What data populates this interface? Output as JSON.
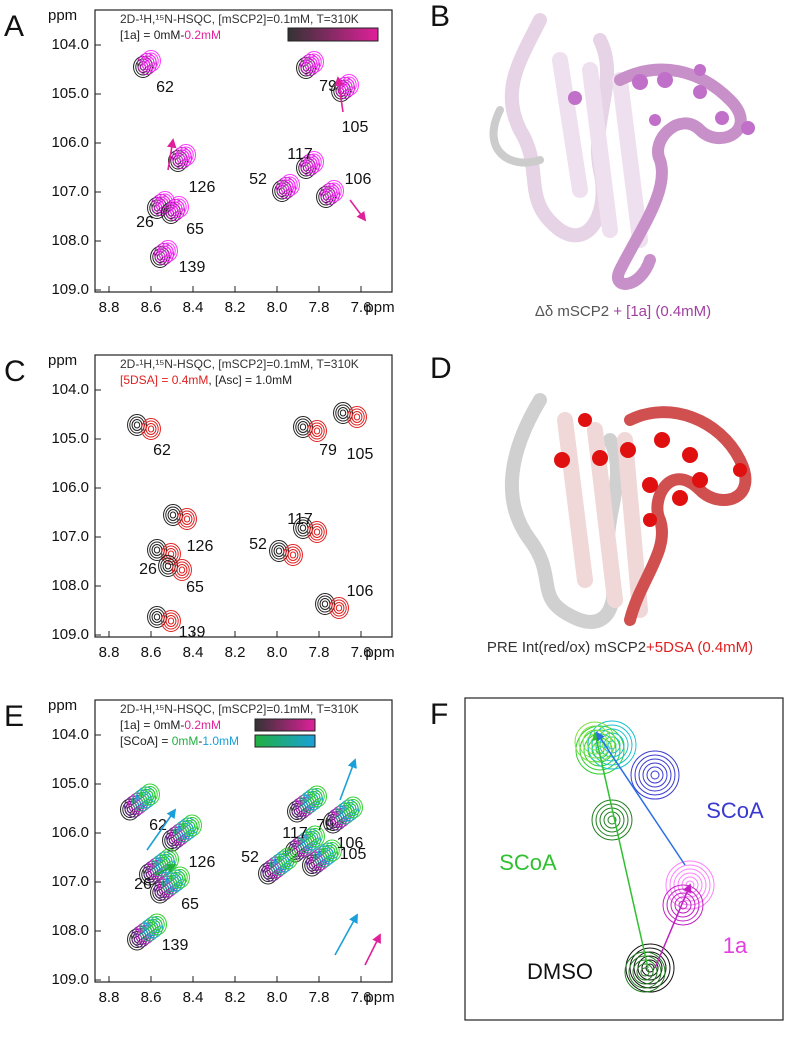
{
  "panels": [
    {
      "letter": "A",
      "unit": "ppm",
      "yticks": [
        "104.0",
        "105.0",
        "106.0",
        "107.0",
        "108.0",
        "109.0"
      ],
      "xticks": [
        "8.8",
        "8.6",
        "8.4",
        "8.2",
        "8.0",
        "7.8",
        "7.6"
      ],
      "legend": [
        [
          {
            "text": "2D-¹H,¹⁵N-HSQC, [mSCP2]=0.1mM, T=310K",
            "color": "#333333"
          }
        ],
        [
          {
            "text": "[1a] = 0mM-",
            "color": "#222222"
          },
          {
            "text": "0.2mM",
            "color": "#e0209a"
          }
        ]
      ],
      "peaks": [
        "62",
        "79",
        "105",
        "117",
        "52",
        "106",
        "126",
        "26",
        "65",
        "139"
      ]
    },
    {
      "letter": "C",
      "unit": "ppm",
      "yticks": [
        "104.0",
        "105.0",
        "106.0",
        "107.0",
        "108.0",
        "109.0"
      ],
      "xticks": [
        "8.8",
        "8.6",
        "8.4",
        "8.2",
        "8.0",
        "7.8",
        "7.6"
      ],
      "legend": [
        [
          {
            "text": "2D-¹H,¹⁵N-HSQC, [mSCP2]=0.1mM, T=310K",
            "color": "#333333"
          }
        ],
        [
          {
            "text": "[5DSA] = 0.4mM",
            "color": "#e02020"
          },
          {
            "text": ", [Asc] = 1.0mM",
            "color": "#222222"
          }
        ]
      ],
      "peaks": [
        "62",
        "79",
        "105",
        "117",
        "52",
        "106",
        "126",
        "26",
        "65",
        "139"
      ]
    },
    {
      "letter": "E",
      "unit": "ppm",
      "yticks": [
        "104.0",
        "105.0",
        "106.0",
        "107.0",
        "108.0",
        "109.0"
      ],
      "xticks": [
        "8.8",
        "8.6",
        "8.4",
        "8.2",
        "8.0",
        "7.8",
        "7.6"
      ],
      "legend": [
        [
          {
            "text": "2D-¹H,¹⁵N-HSQC, [mSCP2]=0.1mM, T=310K",
            "color": "#333333"
          }
        ],
        [
          {
            "text": "[1a] = 0mM-",
            "color": "#222222"
          },
          {
            "text": "0.2mM",
            "color": "#e0209a"
          }
        ],
        [
          {
            "text": "[SCoA] = ",
            "color": "#222222"
          },
          {
            "text": "0mM",
            "color": "#20b040"
          },
          {
            "text": "-",
            "color": "#222222"
          },
          {
            "text": "1.0mM",
            "color": "#1aa0d8"
          }
        ]
      ],
      "peaks": [
        "62",
        "79",
        "105",
        "117",
        "52",
        "106",
        "126",
        "26",
        "65",
        "139"
      ]
    }
  ],
  "structures": [
    {
      "letter": "B",
      "caption": [
        {
          "text": "Δδ mSCP2 ",
          "color": "#555555"
        },
        {
          "text": "+ [1a] (0.4mM)",
          "color": "#a040a0"
        }
      ]
    },
    {
      "letter": "D",
      "caption": [
        {
          "text": "PRE Int(red/ox) mSCP2",
          "color": "#333333"
        },
        {
          "text": "+5DSA (0.4mM)",
          "color": "#e02020"
        }
      ]
    }
  ],
  "panel_f": {
    "letter": "F",
    "labels": [
      {
        "text": "SCoA",
        "color": "#3a3ad0"
      },
      {
        "text": "SCoA",
        "color": "#30c030"
      },
      {
        "text": "1a",
        "color": "#e040e0"
      },
      {
        "text": "DMSO",
        "color": "#111111"
      }
    ]
  }
}
